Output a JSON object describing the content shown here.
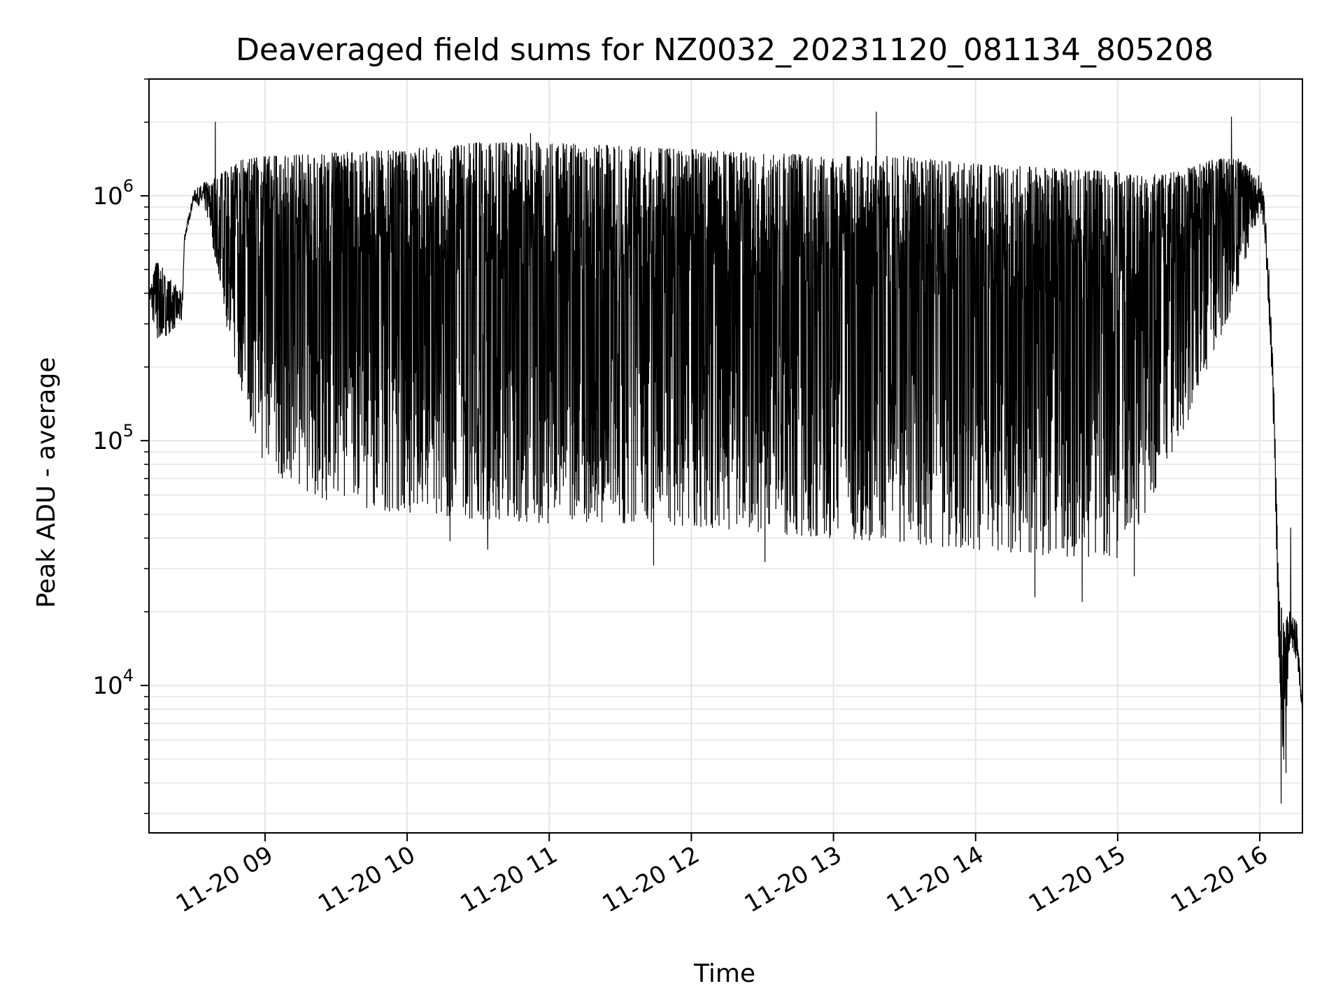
{
  "chart_data": {
    "type": "line",
    "title": "Deaveraged field sums for NZ0032_20231120_081134_805208",
    "xlabel": "Time",
    "ylabel": "Peak ADU - average",
    "yscale": "log",
    "ylim": [
      2500,
      3000000
    ],
    "xlim": [
      "2023-11-20 08:11",
      "2023-11-20 16:18"
    ],
    "grid": true,
    "line_color": "#000000",
    "grid_color": "#e6e6e6",
    "x_ticks": [
      {
        "t": "2023-11-20 09:00",
        "label": "11-20 09"
      },
      {
        "t": "2023-11-20 10:00",
        "label": "11-20 10"
      },
      {
        "t": "2023-11-20 11:00",
        "label": "11-20 11"
      },
      {
        "t": "2023-11-20 12:00",
        "label": "11-20 12"
      },
      {
        "t": "2023-11-20 13:00",
        "label": "11-20 13"
      },
      {
        "t": "2023-11-20 14:00",
        "label": "11-20 14"
      },
      {
        "t": "2023-11-20 15:00",
        "label": "11-20 15"
      },
      {
        "t": "2023-11-20 16:00",
        "label": "11-20 16"
      }
    ],
    "y_ticks": [
      {
        "value": 10000,
        "base": "10",
        "exp": "4"
      },
      {
        "value": 100000,
        "base": "10",
        "exp": "5"
      },
      {
        "value": 1000000,
        "base": "10",
        "exp": "6"
      }
    ],
    "series": [
      {
        "name": "",
        "envelope": [
          {
            "t": "2023-11-20 08:11",
            "upper": 420000,
            "lower": 380000
          },
          {
            "t": "2023-11-20 08:14",
            "upper": 550000,
            "lower": 250000
          },
          {
            "t": "2023-11-20 08:25",
            "upper": 400000,
            "lower": 300000
          },
          {
            "t": "2023-11-20 08:26",
            "upper": 700000,
            "lower": 650000
          },
          {
            "t": "2023-11-20 08:30",
            "upper": 1050000,
            "lower": 950000
          },
          {
            "t": "2023-11-20 08:35",
            "upper": 1150000,
            "lower": 850000
          },
          {
            "t": "2023-11-20 08:40",
            "upper": 1200000,
            "lower": 500000
          },
          {
            "t": "2023-11-20 08:45",
            "upper": 1300000,
            "lower": 250000
          },
          {
            "t": "2023-11-20 08:50",
            "upper": 1400000,
            "lower": 160000
          },
          {
            "t": "2023-11-20 09:00",
            "upper": 1450000,
            "lower": 75000
          },
          {
            "t": "2023-11-20 09:30",
            "upper": 1500000,
            "lower": 55000
          },
          {
            "t": "2023-11-20 10:00",
            "upper": 1550000,
            "lower": 50000
          },
          {
            "t": "2023-11-20 10:30",
            "upper": 1650000,
            "lower": 48000
          },
          {
            "t": "2023-11-20 11:00",
            "upper": 1650000,
            "lower": 46000
          },
          {
            "t": "2023-11-20 11:30",
            "upper": 1600000,
            "lower": 46000
          },
          {
            "t": "2023-11-20 12:00",
            "upper": 1550000,
            "lower": 45000
          },
          {
            "t": "2023-11-20 12:30",
            "upper": 1500000,
            "lower": 42000
          },
          {
            "t": "2023-11-20 13:00",
            "upper": 1450000,
            "lower": 40000
          },
          {
            "t": "2023-11-20 13:30",
            "upper": 1450000,
            "lower": 38000
          },
          {
            "t": "2023-11-20 14:00",
            "upper": 1350000,
            "lower": 36000
          },
          {
            "t": "2023-11-20 14:30",
            "upper": 1300000,
            "lower": 34000
          },
          {
            "t": "2023-11-20 15:00",
            "upper": 1250000,
            "lower": 33000
          },
          {
            "t": "2023-11-20 15:10",
            "upper": 1200000,
            "lower": 45000
          },
          {
            "t": "2023-11-20 15:20",
            "upper": 1250000,
            "lower": 80000
          },
          {
            "t": "2023-11-20 15:30",
            "upper": 1300000,
            "lower": 120000
          },
          {
            "t": "2023-11-20 15:40",
            "upper": 1400000,
            "lower": 200000
          },
          {
            "t": "2023-11-20 15:50",
            "upper": 1450000,
            "lower": 400000
          },
          {
            "t": "2023-11-20 16:00",
            "upper": 1200000,
            "lower": 850000
          },
          {
            "t": "2023-11-20 16:02",
            "upper": 1000000,
            "lower": 700000
          },
          {
            "t": "2023-11-20 16:04",
            "upper": 500000,
            "lower": 300000
          },
          {
            "t": "2023-11-20 16:06",
            "upper": 160000,
            "lower": 100000
          },
          {
            "t": "2023-11-20 16:08",
            "upper": 25000,
            "lower": 12000
          },
          {
            "t": "2023-11-20 16:10",
            "upper": 18000,
            "lower": 4500
          },
          {
            "t": "2023-11-20 16:13",
            "upper": 21000,
            "lower": 15000
          },
          {
            "t": "2023-11-20 16:16",
            "upper": 18000,
            "lower": 12000
          },
          {
            "t": "2023-11-20 16:18",
            "upper": 8000,
            "lower": 7500
          }
        ],
        "spikes": [
          {
            "t": "2023-11-20 08:39",
            "value": 2000000
          },
          {
            "t": "2023-11-20 09:06",
            "value": 90000
          },
          {
            "t": "2023-11-20 10:18",
            "value": 39000
          },
          {
            "t": "2023-11-20 10:34",
            "value": 36000
          },
          {
            "t": "2023-11-20 10:52",
            "value": 1800000
          },
          {
            "t": "2023-11-20 11:44",
            "value": 31000
          },
          {
            "t": "2023-11-20 12:31",
            "value": 32000
          },
          {
            "t": "2023-11-20 13:18",
            "value": 2200000
          },
          {
            "t": "2023-11-20 14:25",
            "value": 23000
          },
          {
            "t": "2023-11-20 14:45",
            "value": 22000
          },
          {
            "t": "2023-11-20 15:07",
            "value": 28000
          },
          {
            "t": "2023-11-20 15:48",
            "value": 2100000
          },
          {
            "t": "2023-11-20 16:09",
            "value": 3300
          },
          {
            "t": "2023-11-20 16:11",
            "value": 4400
          },
          {
            "t": "2023-11-20 16:13",
            "value": 44000
          }
        ]
      }
    ]
  }
}
